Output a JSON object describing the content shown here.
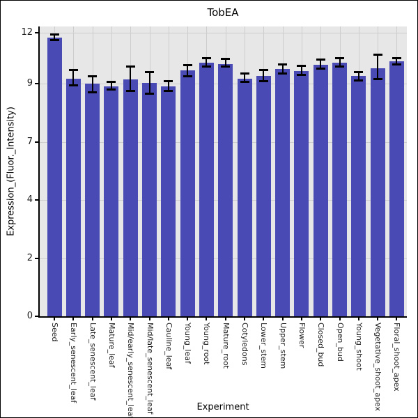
{
  "chart_data": {
    "type": "bar",
    "title": "TobEA",
    "xlabel": "Experiment",
    "ylabel": "Expression_(Fluor._Intensity)",
    "categories": [
      "Seed",
      "Early_senescent_leaf",
      "Late_senescent_leaf",
      "Mature_leaf",
      "Mid/early_senescent_leaf",
      "Mid/late_senescent_leaf",
      "Cauline_leaf",
      "Young_leaf",
      "Young_root",
      "Mature_root",
      "Cotyledons",
      "Lower_stem",
      "Upper_stem",
      "Flower",
      "Closed_bud",
      "Open_bud",
      "Young_shoot",
      "Vegetative_shoot_apex",
      "Floral_shoot_apex"
    ],
    "values": [
      11.7,
      9.3,
      9.0,
      8.9,
      9.25,
      9.05,
      8.9,
      9.8,
      10.25,
      10.15,
      9.3,
      9.45,
      9.85,
      9.75,
      10.1,
      10.25,
      9.45,
      9.9,
      10.3
    ],
    "error_low": [
      11.55,
      8.95,
      8.7,
      8.8,
      8.75,
      8.65,
      8.75,
      9.45,
      10.0,
      10.0,
      9.1,
      9.15,
      9.6,
      9.5,
      9.9,
      10.0,
      9.2,
      9.25,
      10.15
    ],
    "error_high": [
      11.9,
      9.8,
      9.45,
      9.1,
      10.0,
      9.7,
      9.15,
      10.1,
      10.5,
      10.45,
      9.6,
      9.8,
      10.15,
      10.05,
      10.4,
      10.5,
      9.7,
      10.7,
      10.5
    ],
    "yticks": [
      0,
      2,
      4,
      7,
      9,
      12
    ],
    "ylim": [
      0,
      12.6
    ],
    "grid": true,
    "legend": false,
    "bar_color": "#4a4ab4",
    "plot_bg": "#e7e7e7",
    "grid_color": "#cdcdcd",
    "axis_color": "#000000"
  }
}
